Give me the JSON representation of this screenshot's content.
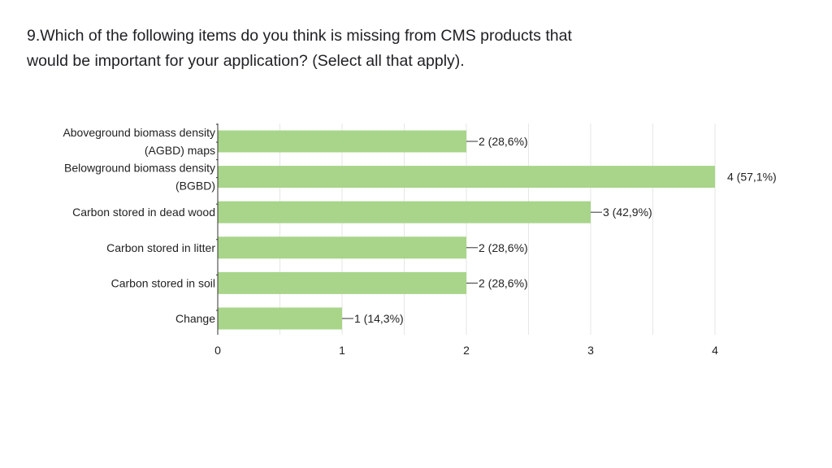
{
  "question": {
    "line1": "9.Which of the following items do you think is missing from CMS products that",
    "line2": "would be important for your application? (Select all that apply)."
  },
  "colors": {
    "bar": "#a8d58a",
    "grid": "#e6e6e6",
    "axis": "#333333",
    "text": "#222222"
  },
  "chart_data": {
    "type": "bar",
    "orientation": "horizontal",
    "categories": [
      [
        "Aboveground biomass density",
        "(AGBD) maps"
      ],
      [
        "Belowground biomass density",
        "(BGBD)"
      ],
      [
        "Carbon stored in dead wood"
      ],
      [
        "Carbon stored in litter"
      ],
      [
        "Carbon stored in soil"
      ],
      [
        "Change"
      ]
    ],
    "values": [
      2,
      4,
      3,
      2,
      2,
      1
    ],
    "data_labels": [
      "2 (28,6%)",
      "4 (57,1%)",
      "3 (42,9%)",
      "2 (28,6%)",
      "2 (28,6%)",
      "1 (14,3%)"
    ],
    "xlim": [
      0,
      4
    ],
    "xticks": [
      "0",
      "1",
      "2",
      "3",
      "4"
    ],
    "grid": true,
    "legend": "none"
  }
}
